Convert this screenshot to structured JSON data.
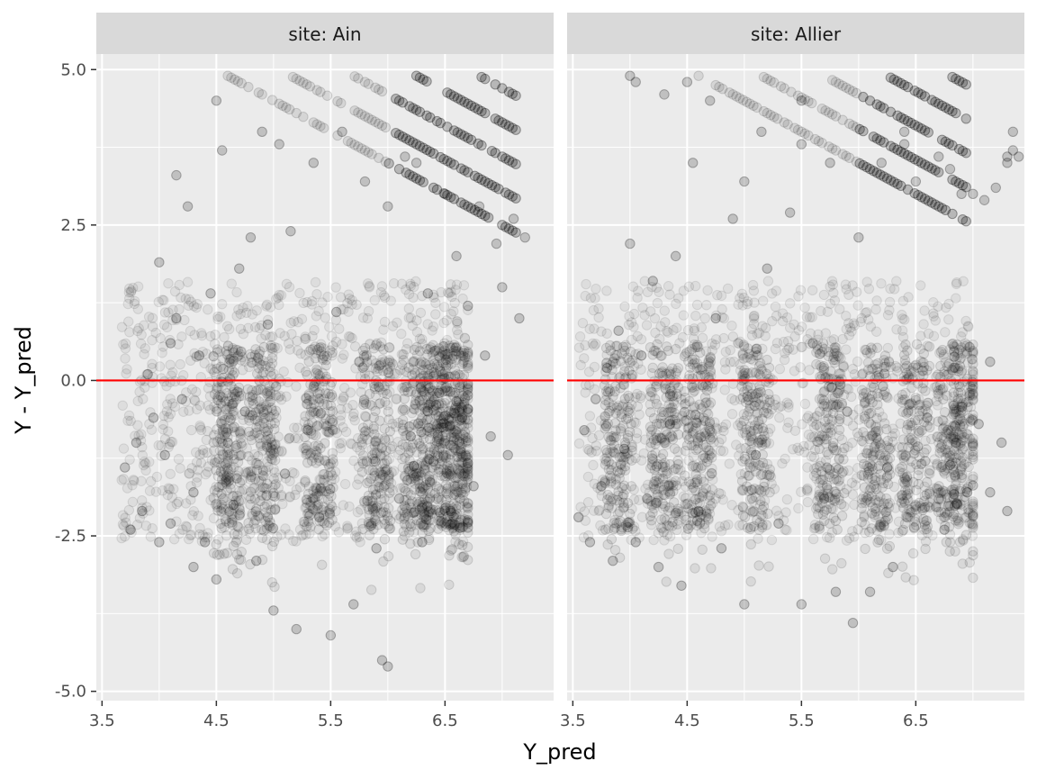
{
  "chart_data": {
    "type": "scatter",
    "xlabel": "Y_pred",
    "ylabel": "Y - Y_pred",
    "xlim": [
      3.45,
      7.45
    ],
    "ylim": [
      -5.15,
      5.25
    ],
    "x_ticks": [
      3.5,
      4.5,
      5.5,
      6.5
    ],
    "x_tick_labels": [
      "3.5",
      "4.5",
      "5.5",
      "6.5"
    ],
    "y_ticks": [
      -5.0,
      -2.5,
      0.0,
      2.5,
      5.0
    ],
    "y_tick_labels": [
      "-5.0",
      "-2.5",
      "0.0",
      "2.5",
      "5.0"
    ],
    "reference_line": {
      "y": 0,
      "color": "#ff0000"
    },
    "point_color": "#000000",
    "point_opacity": 0.08,
    "grid": true,
    "panels": [
      {
        "strip": "site: Ain",
        "series": [
          {
            "values": [
              [
                3.7,
                -1.4
              ],
              [
                3.75,
                -2.4
              ],
              [
                3.8,
                -1.0
              ],
              [
                3.85,
                -2.1
              ],
              [
                3.9,
                0.1
              ],
              [
                3.95,
                -0.6
              ],
              [
                4.0,
                -2.6
              ],
              [
                4.0,
                1.9
              ],
              [
                4.05,
                -1.2
              ],
              [
                4.1,
                0.6
              ],
              [
                4.1,
                -2.3
              ],
              [
                4.15,
                1.0
              ],
              [
                4.15,
                3.3
              ],
              [
                4.2,
                -0.3
              ],
              [
                4.25,
                2.8
              ],
              [
                4.3,
                -3.0
              ],
              [
                4.3,
                -1.8
              ],
              [
                4.35,
                0.4
              ],
              [
                4.4,
                -2.6
              ],
              [
                4.45,
                1.4
              ],
              [
                4.5,
                -3.2
              ],
              [
                4.5,
                4.5
              ],
              [
                4.55,
                3.7
              ],
              [
                4.6,
                -1.0
              ],
              [
                4.65,
                -2.0
              ],
              [
                4.7,
                1.8
              ],
              [
                4.75,
                -0.5
              ],
              [
                4.8,
                2.3
              ],
              [
                4.85,
                -2.9
              ],
              [
                4.9,
                4.0
              ],
              [
                4.95,
                0.9
              ],
              [
                5.0,
                -3.7
              ],
              [
                5.05,
                3.8
              ],
              [
                5.1,
                -1.5
              ],
              [
                5.15,
                2.4
              ],
              [
                5.2,
                -4.0
              ],
              [
                5.3,
                -0.8
              ],
              [
                5.35,
                3.5
              ],
              [
                5.4,
                -2.2
              ],
              [
                5.5,
                -4.1
              ],
              [
                5.55,
                1.1
              ],
              [
                5.6,
                4.0
              ],
              [
                5.7,
                -3.6
              ],
              [
                5.75,
                0.3
              ],
              [
                5.8,
                3.2
              ],
              [
                5.9,
                -2.7
              ],
              [
                5.95,
                -4.5
              ],
              [
                6.0,
                -4.6
              ],
              [
                6.0,
                2.8
              ],
              [
                6.1,
                -1.9
              ],
              [
                6.15,
                3.6
              ],
              [
                6.2,
                -0.9
              ],
              [
                6.25,
                3.5
              ],
              [
                6.3,
                -2.6
              ],
              [
                6.35,
                1.4
              ],
              [
                6.4,
                -1.3
              ],
              [
                6.45,
                -0.2
              ],
              [
                6.5,
                3.0
              ],
              [
                6.55,
                -2.1
              ],
              [
                6.6,
                2.0
              ],
              [
                6.65,
                -0.6
              ],
              [
                6.7,
                1.2
              ],
              [
                6.75,
                -1.7
              ],
              [
                6.8,
                2.8
              ],
              [
                6.85,
                0.4
              ],
              [
                6.9,
                -0.9
              ],
              [
                6.95,
                2.2
              ],
              [
                7.0,
                1.5
              ],
              [
                7.05,
                -1.2
              ],
              [
                7.1,
                2.6
              ],
              [
                7.15,
                1.0
              ],
              [
                7.2,
                2.3
              ]
            ]
          }
        ]
      },
      {
        "strip": "site: Allier",
        "series": [
          {
            "values": [
              [
                3.55,
                -2.2
              ],
              [
                3.6,
                -0.8
              ],
              [
                3.65,
                -2.6
              ],
              [
                3.7,
                -0.3
              ],
              [
                3.75,
                -1.7
              ],
              [
                3.8,
                0.2
              ],
              [
                3.85,
                -2.9
              ],
              [
                3.9,
                0.8
              ],
              [
                3.95,
                -1.1
              ],
              [
                4.0,
                4.9
              ],
              [
                4.0,
                2.2
              ],
              [
                4.05,
                -2.6
              ],
              [
                4.05,
                4.8
              ],
              [
                4.1,
                0.4
              ],
              [
                4.15,
                -1.9
              ],
              [
                4.2,
                1.6
              ],
              [
                4.25,
                -3.0
              ],
              [
                4.3,
                4.6
              ],
              [
                4.35,
                -0.7
              ],
              [
                4.4,
                2.0
              ],
              [
                4.45,
                -3.3
              ],
              [
                4.5,
                4.8
              ],
              [
                4.55,
                3.5
              ],
              [
                4.6,
                -2.1
              ],
              [
                4.7,
                4.5
              ],
              [
                4.75,
                1.0
              ],
              [
                4.8,
                -2.7
              ],
              [
                4.9,
                2.6
              ],
              [
                5.0,
                -3.6
              ],
              [
                5.0,
                3.2
              ],
              [
                5.1,
                -1.2
              ],
              [
                5.15,
                4.0
              ],
              [
                5.2,
                1.8
              ],
              [
                5.3,
                -2.3
              ],
              [
                5.4,
                2.7
              ],
              [
                5.5,
                4.5
              ],
              [
                5.5,
                3.8
              ],
              [
                5.5,
                -3.6
              ],
              [
                5.6,
                0.6
              ],
              [
                5.7,
                -1.9
              ],
              [
                5.75,
                3.5
              ],
              [
                5.8,
                -3.4
              ],
              [
                5.9,
                -0.5
              ],
              [
                5.95,
                -3.9
              ],
              [
                6.0,
                2.3
              ],
              [
                6.1,
                -3.4
              ],
              [
                6.2,
                3.5
              ],
              [
                6.25,
                -1.4
              ],
              [
                6.3,
                -3.0
              ],
              [
                6.4,
                4.0
              ],
              [
                6.4,
                3.8
              ],
              [
                6.5,
                3.2
              ],
              [
                6.6,
                -0.6
              ],
              [
                6.7,
                3.6
              ],
              [
                6.75,
                -2.4
              ],
              [
                6.8,
                3.4
              ],
              [
                6.85,
                -1.0
              ],
              [
                6.9,
                3.0
              ],
              [
                6.95,
                -1.8
              ],
              [
                7.0,
                3.0
              ],
              [
                7.05,
                -0.7
              ],
              [
                7.1,
                2.9
              ],
              [
                7.15,
                0.3
              ],
              [
                7.2,
                3.1
              ],
              [
                7.25,
                -1.0
              ],
              [
                7.3,
                3.5
              ],
              [
                7.3,
                3.6
              ],
              [
                7.35,
                4.0
              ],
              [
                7.35,
                3.7
              ],
              [
                7.4,
                3.6
              ],
              [
                7.3,
                -2.1
              ],
              [
                7.15,
                -1.8
              ]
            ]
          }
        ]
      }
    ]
  }
}
